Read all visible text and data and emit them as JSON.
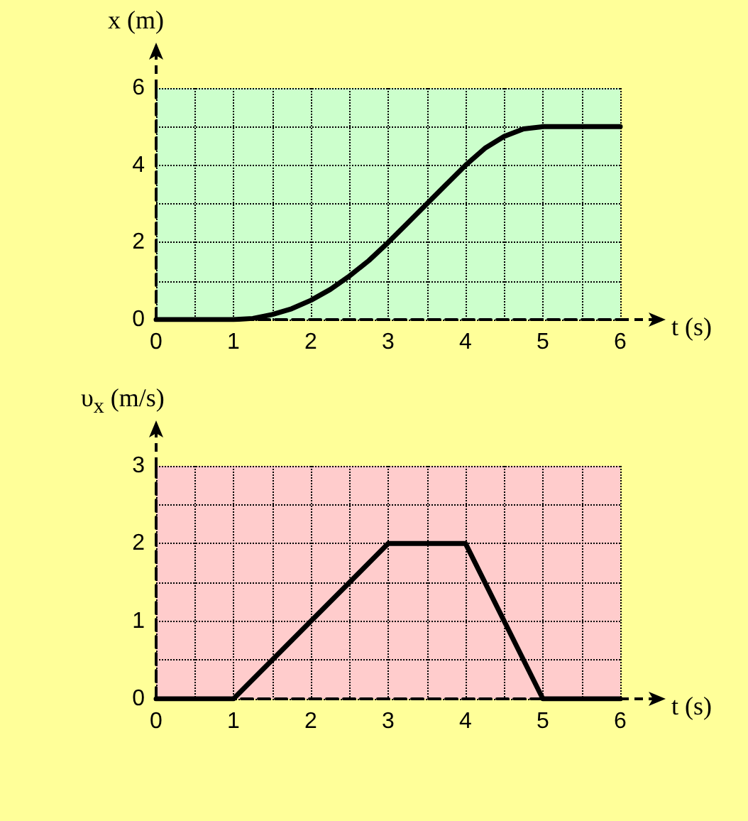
{
  "chart_data": [
    {
      "type": "line",
      "xlabel": "t (s)",
      "ylabel": "x (m)",
      "x": [
        0,
        1,
        1.25,
        1.5,
        1.75,
        2,
        2.25,
        2.5,
        2.75,
        3,
        3.25,
        3.5,
        3.75,
        4,
        4.25,
        4.5,
        4.75,
        5,
        6
      ],
      "series": [
        {
          "color": "#000000",
          "values": [
            0,
            0,
            0.03,
            0.13,
            0.28,
            0.5,
            0.78,
            1.13,
            1.53,
            2,
            2.5,
            3,
            3.5,
            4,
            4.44,
            4.75,
            4.94,
            5,
            5
          ]
        }
      ],
      "xlim": [
        0,
        6
      ],
      "ylim": [
        0,
        6
      ],
      "xticks": [
        0,
        {
          "value": 0.5,
          "label": null
        },
        1,
        {
          "value": 1.5,
          "label": null
        },
        2,
        {
          "value": 2.5,
          "label": null
        },
        3,
        {
          "value": 3.5,
          "label": null
        },
        4,
        {
          "value": 4.5,
          "label": null
        },
        5,
        {
          "value": 5.5,
          "label": null
        },
        6
      ],
      "yticks": [
        0,
        {
          "value": 1,
          "label": null
        },
        2,
        {
          "value": 3,
          "label": null
        },
        4,
        {
          "value": 5,
          "label": null
        },
        6
      ],
      "grid": true,
      "marker": "none",
      "line_style": "solid"
    },
    {
      "type": "line",
      "xlabel": "t (s)",
      "ylabel": "υ$_{x}$ (m/s)",
      "x": [
        0,
        1,
        3,
        4,
        5,
        6
      ],
      "series": [
        {
          "color": "#000000",
          "values": [
            0,
            0,
            2,
            2,
            0,
            0
          ]
        }
      ],
      "xlim": [
        0,
        6
      ],
      "ylim": [
        0,
        3
      ],
      "xticks": [
        0,
        {
          "value": 0.5,
          "label": null
        },
        1,
        {
          "value": 1.5,
          "label": null
        },
        2,
        {
          "value": 2.5,
          "label": null
        },
        3,
        {
          "value": 3.5,
          "label": null
        },
        4,
        {
          "value": 4.5,
          "label": null
        },
        5,
        {
          "value": 5.5,
          "label": null
        },
        6
      ],
      "yticks": [
        0,
        {
          "value": 0.5,
          "label": null
        },
        1,
        {
          "value": 1.5,
          "label": null
        },
        2,
        {
          "value": 2.5,
          "label": null
        },
        3
      ],
      "grid": true,
      "marker": "none",
      "line_style": "solid"
    }
  ]
}
